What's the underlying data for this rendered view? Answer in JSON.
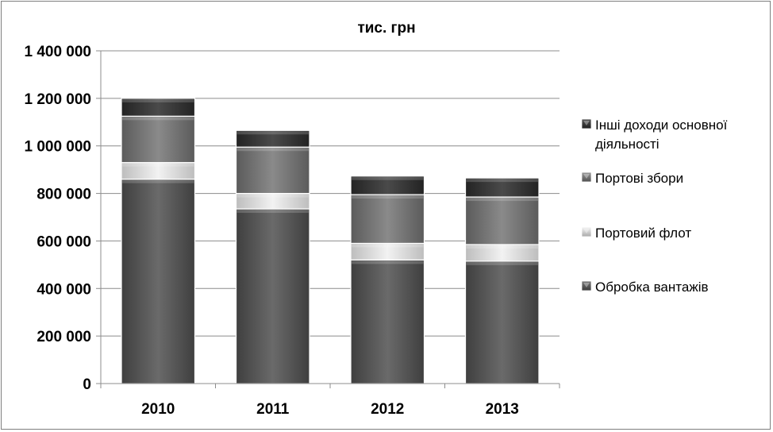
{
  "chart_data": {
    "type": "bar",
    "stacked": true,
    "title": "тис. грн",
    "xlabel": "",
    "ylabel": "",
    "categories": [
      "2010",
      "2011",
      "2012",
      "2013"
    ],
    "ylim": [
      0,
      1400000
    ],
    "yticks": [
      0,
      200000,
      400000,
      600000,
      800000,
      1000000,
      1200000,
      1400000
    ],
    "ytick_labels": [
      "0",
      "200 000",
      "400 000",
      "600 000",
      "800 000",
      "1 000 000",
      "1 200 000",
      "1 400 000"
    ],
    "grid": true,
    "legend_position": "right",
    "series": [
      {
        "name": "Обробка вантажів",
        "values": [
          860000,
          735000,
          520000,
          515000
        ],
        "color": "#4d4d4d"
      },
      {
        "name": "Портовий флот",
        "values": [
          70000,
          65000,
          70000,
          70000
        ],
        "color": "#cfcfcf"
      },
      {
        "name": "Портові збори",
        "values": [
          195000,
          195000,
          205000,
          200000
        ],
        "color": "#6e6e6e"
      },
      {
        "name": "Інші доходи основної діяльності",
        "values": [
          75000,
          70000,
          78000,
          80000
        ],
        "color": "#2e2e2e"
      }
    ],
    "legend": [
      {
        "lines": [
          "Інші доходи основної",
          "діяльності"
        ]
      },
      {
        "lines": [
          "Портові збори"
        ]
      },
      {
        "lines": [
          "Портовий флот"
        ]
      },
      {
        "lines": [
          "Обробка вантажів"
        ]
      }
    ]
  }
}
